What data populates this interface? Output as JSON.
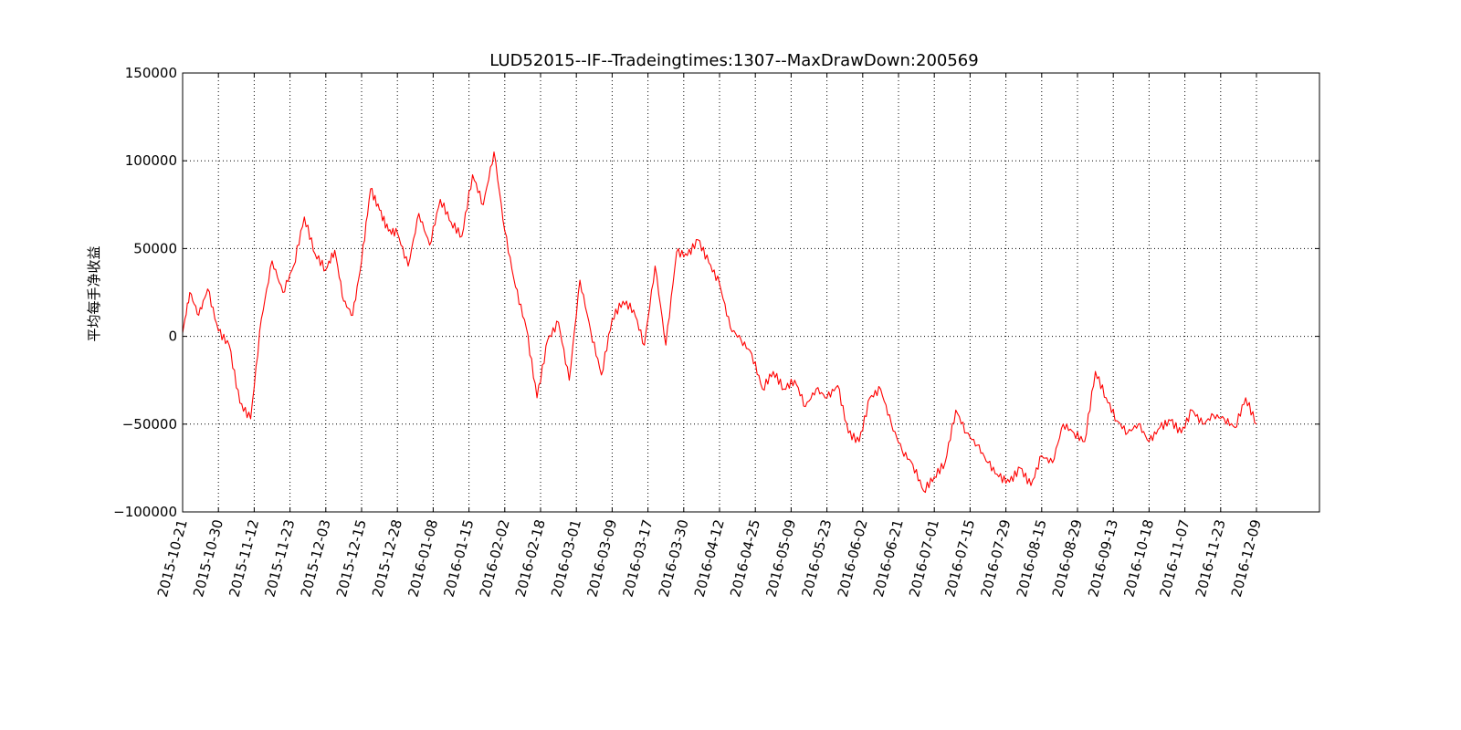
{
  "chart_data": {
    "type": "line",
    "title": "LUD52015--IF--Tradeingtimes:1307--MaxDrawDown:200569",
    "xlabel": "",
    "ylabel": "平均每手净收益",
    "ylim": [
      -100000,
      150000
    ],
    "yticks": [
      -100000,
      -50000,
      0,
      50000,
      100000,
      150000
    ],
    "ytick_labels": [
      "−100000",
      "−50000",
      "0",
      "50000",
      "100000",
      "150000"
    ],
    "xticks": [
      "2015-10-21",
      "2015-10-30",
      "2015-11-12",
      "2015-11-23",
      "2015-12-03",
      "2015-12-15",
      "2015-12-28",
      "2016-01-08",
      "2016-01-15",
      "2016-02-02",
      "2016-02-18",
      "2016-03-01",
      "2016-03-09",
      "2016-03-17",
      "2016-03-30",
      "2016-04-12",
      "2016-04-25",
      "2016-05-09",
      "2016-05-23",
      "2016-06-02",
      "2016-06-21",
      "2016-07-01",
      "2016-07-15",
      "2016-07-29",
      "2016-08-15",
      "2016-08-29",
      "2016-09-13",
      "2016-10-18",
      "2016-11-07",
      "2016-11-23",
      "2016-12-09"
    ],
    "grid": true,
    "series": [
      {
        "color": "#ff0000",
        "x": [
          0,
          0.2,
          0.45,
          0.7,
          1.0,
          1.3,
          1.6,
          1.9,
          2.2,
          2.5,
          2.8,
          3.1,
          3.4,
          3.7,
          4.0,
          4.25,
          4.5,
          4.75,
          5.0,
          5.25,
          5.5,
          5.75,
          6.0,
          6.3,
          6.6,
          6.9,
          7.2,
          7.5,
          7.8,
          8.1,
          8.4,
          8.7,
          9.0,
          9.3,
          9.6,
          9.9,
          10.2,
          10.5,
          10.8,
          11.1,
          11.4,
          11.7,
          12.0,
          12.3,
          12.6,
          12.9,
          13.2,
          13.5,
          13.8,
          14.1,
          14.4,
          14.7,
          15.0,
          15.3,
          15.6,
          15.9,
          16.2,
          16.5,
          16.8,
          17.1,
          17.4,
          17.7,
          18.0,
          18.3,
          18.6,
          18.9,
          19.2,
          19.5,
          19.8,
          20.1,
          20.4,
          20.7,
          21.0,
          21.3,
          21.6,
          21.9,
          22.2,
          22.5,
          22.8,
          23.1,
          23.4,
          23.7,
          24.0,
          24.3,
          24.6,
          24.9,
          25.2,
          25.5,
          25.8,
          26.1,
          26.4,
          26.7,
          27.0,
          27.3,
          27.6,
          27.9,
          28.2,
          28.5,
          28.8,
          29.1,
          29.4,
          29.7,
          30.0
        ],
        "y": [
          2000,
          25000,
          12000,
          27000,
          3000,
          -5000,
          -38000,
          -47000,
          10000,
          43000,
          25000,
          40000,
          68000,
          47000,
          38000,
          49000,
          20000,
          12000,
          43000,
          84000,
          72000,
          60000,
          59000,
          40000,
          70000,
          52000,
          78000,
          65000,
          57000,
          92000,
          75000,
          105000,
          60000,
          28000,
          5000,
          -35000,
          -2000,
          8000,
          -25000,
          32000,
          3000,
          -22000,
          10000,
          20000,
          15000,
          -5000,
          40000,
          -5000,
          48000,
          46000,
          55000,
          42000,
          30000,
          5000,
          -2000,
          -10000,
          -30000,
          -20000,
          -30000,
          -25000,
          -40000,
          -30000,
          -35000,
          -28000,
          -55000,
          -60000,
          -35000,
          -30000,
          -50000,
          -65000,
          -73000,
          -88000,
          -80000,
          -72000,
          -42000,
          -55000,
          -62000,
          -72000,
          -80000,
          -83000,
          -75000,
          -85000,
          -68000,
          -72000,
          -50000,
          -55000,
          -60000,
          -20000,
          -35000,
          -48000,
          -55000,
          -50000,
          -60000,
          -52000,
          -48000,
          -55000,
          -42000,
          -50000,
          -45000,
          -47000,
          -52000,
          -35000,
          -50000
        ]
      }
    ]
  }
}
